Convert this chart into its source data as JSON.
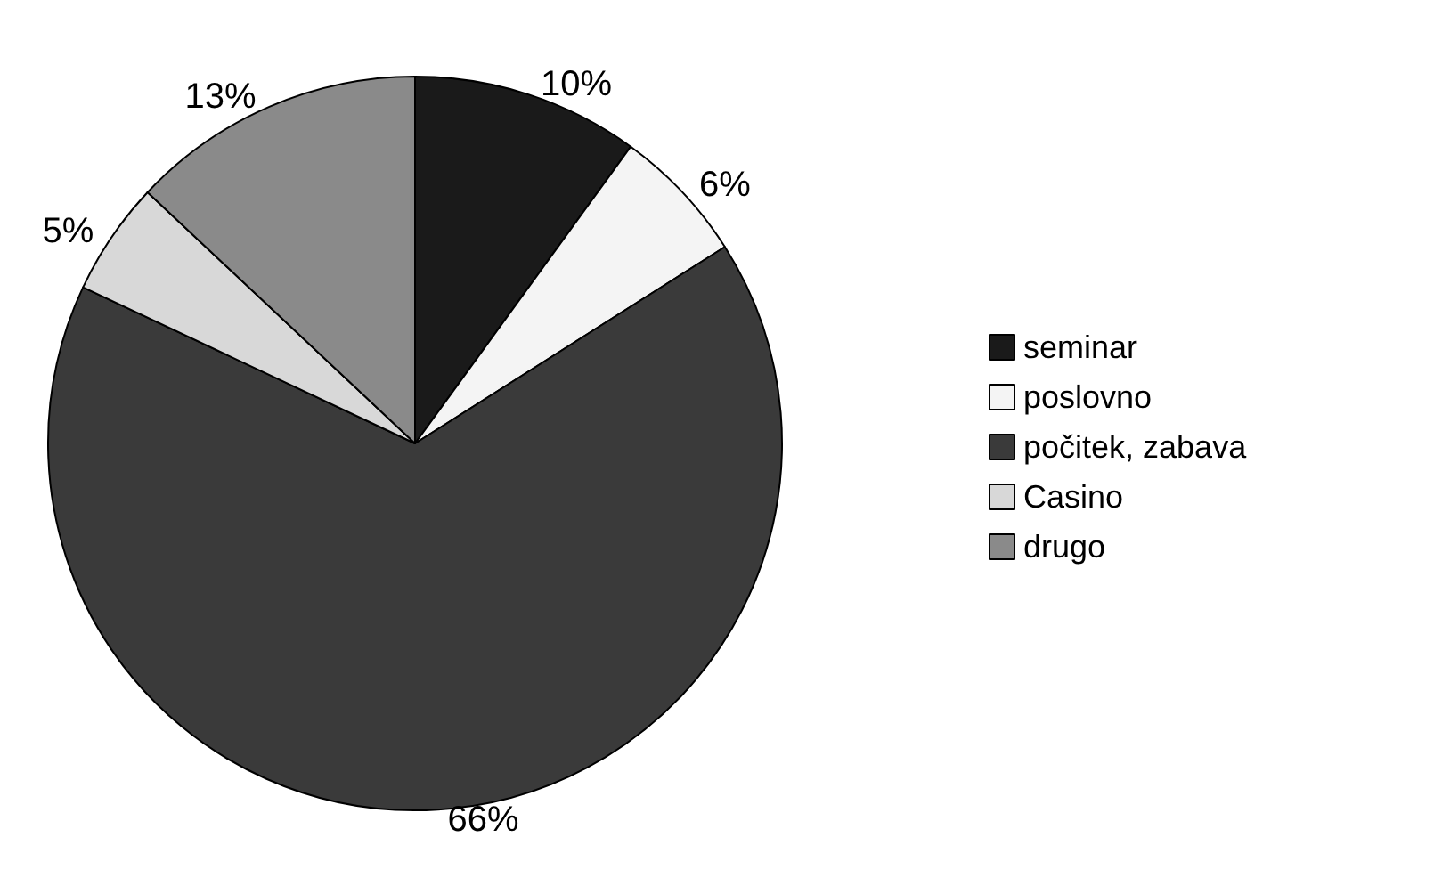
{
  "chart_data": {
    "type": "pie",
    "categories": [
      "seminar",
      "poslovno",
      "počitek, zabava",
      "Casino",
      "drugo"
    ],
    "values": [
      10,
      6,
      66,
      5,
      13
    ],
    "colors": [
      "#1a1a1a",
      "#f4f4f4",
      "#3a3a3a",
      "#d8d8d8",
      "#8a8a8a"
    ],
    "value_labels": [
      "10%",
      "6%",
      "66%",
      "5%",
      "13%"
    ],
    "legend": "right"
  }
}
